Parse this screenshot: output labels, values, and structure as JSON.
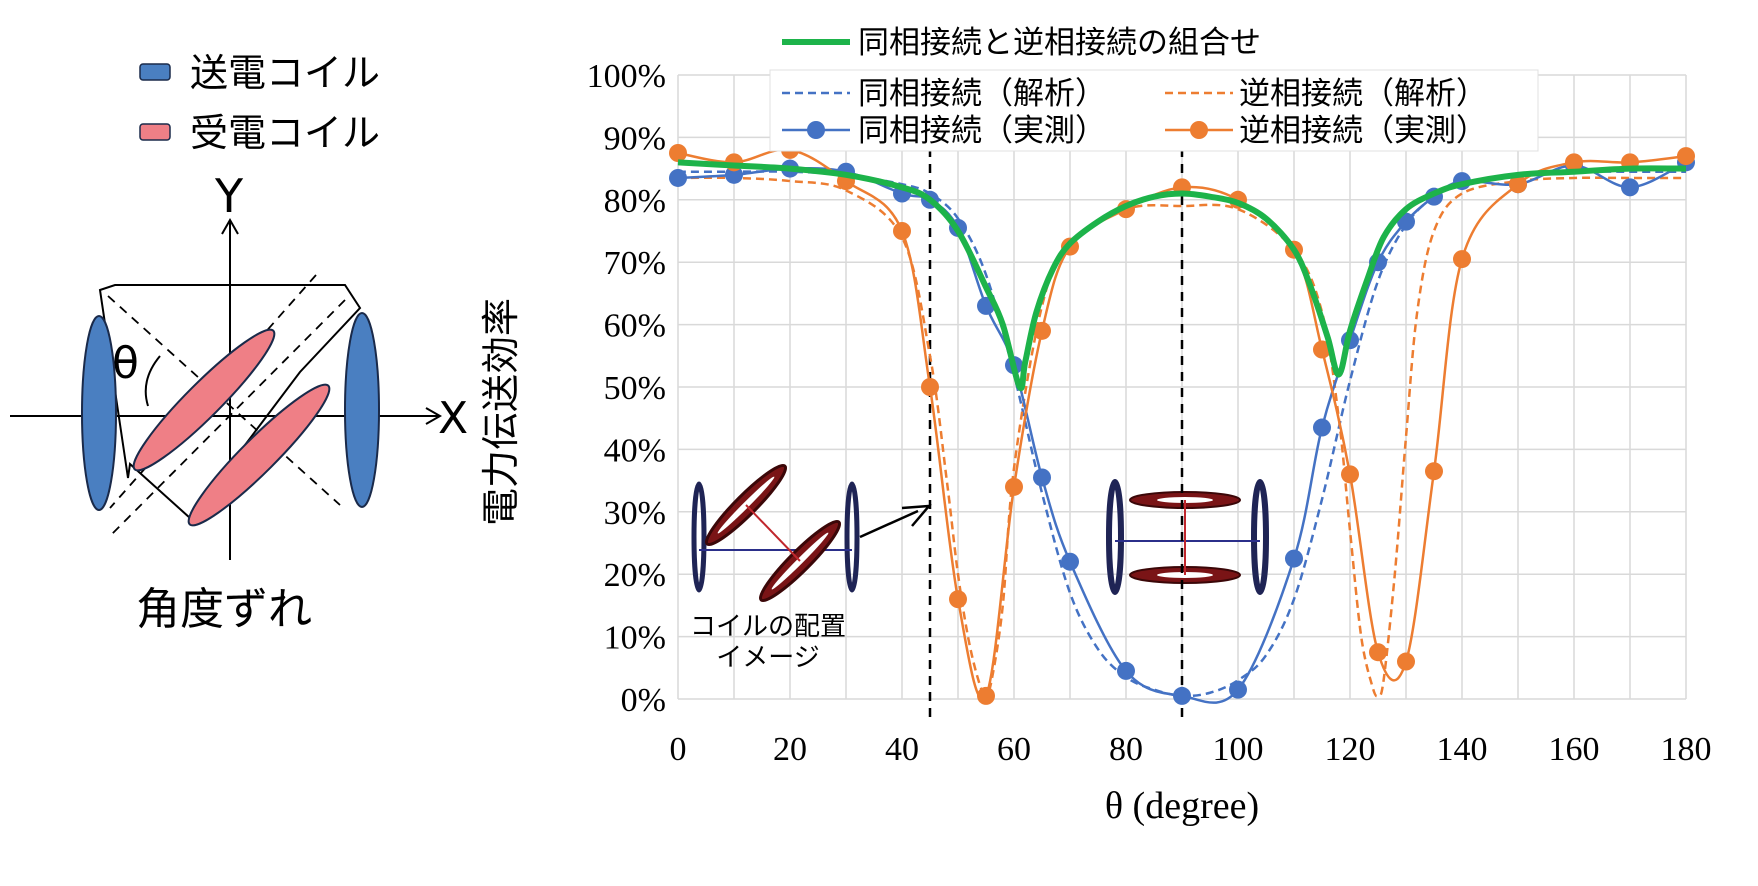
{
  "diagram": {
    "legend": [
      {
        "label": "送電コイル",
        "color": "#4a7fc1"
      },
      {
        "label": "受電コイル",
        "color": "#ef7f86"
      }
    ],
    "y_axis_label": "Y",
    "x_axis_label": "X",
    "angle_label": "θ",
    "caption": "角度ずれ"
  },
  "chart_data": {
    "type": "line",
    "xlabel": "θ (degree)",
    "ylabel": "電力伝送効率",
    "xlim": [
      0,
      180
    ],
    "ylim": [
      0,
      100
    ],
    "x_ticks": [
      "0",
      "20",
      "40",
      "60",
      "80",
      "100",
      "120",
      "140",
      "160",
      "180"
    ],
    "y_ticks": [
      "0%",
      "10%",
      "20%",
      "30%",
      "40%",
      "50%",
      "60%",
      "70%",
      "80%",
      "90%",
      "100%"
    ],
    "grid": true,
    "legend_position": "top",
    "annotations": {
      "inset_caption": "コイルの配置\nイメージ",
      "reference_lines_x": [
        45,
        90
      ]
    },
    "series": [
      {
        "name": "同相接続と逆相接続の組合せ",
        "style": "solid-thick",
        "color": "#1db34a",
        "x": [
          0,
          10,
          20,
          30,
          40,
          45,
          50,
          55,
          58,
          61,
          62,
          64,
          67,
          70,
          75,
          80,
          85,
          90,
          95,
          100,
          105,
          110,
          113,
          116,
          118,
          120,
          123,
          126,
          130,
          135,
          140,
          150,
          160,
          170,
          180
        ],
        "y": [
          86,
          85.5,
          85,
          84,
          82,
          80,
          75,
          66,
          60,
          50,
          54,
          62,
          69,
          73,
          76.5,
          79,
          80.5,
          81,
          80.5,
          79.5,
          77,
          72,
          66,
          58,
          52,
          59,
          67,
          74,
          78.5,
          81,
          82.5,
          84,
          84.5,
          85,
          85
        ]
      },
      {
        "name": "同相接続（解析）",
        "style": "dashed",
        "color": "#4472c4",
        "x": [
          0,
          10,
          20,
          30,
          40,
          45,
          50,
          55,
          60,
          65,
          70,
          75,
          80,
          85,
          90,
          95,
          100,
          105,
          110,
          115,
          120,
          125,
          130,
          135,
          140,
          150,
          160,
          170,
          180
        ],
        "y": [
          84.5,
          84.5,
          84.5,
          84,
          82.5,
          81,
          77,
          68,
          52,
          33,
          17,
          8,
          3.5,
          1.5,
          0.5,
          1,
          3,
          7,
          16,
          32,
          51,
          67,
          76,
          80.5,
          82.5,
          84,
          84.5,
          84.5,
          84.5
        ]
      },
      {
        "name": "逆相接続（解析）",
        "style": "dashed",
        "color": "#ed7d31",
        "x": [
          0,
          10,
          20,
          30,
          40,
          45,
          48,
          50,
          52,
          54,
          55,
          56,
          58,
          60,
          65,
          70,
          80,
          90,
          100,
          110,
          115,
          118,
          120,
          122,
          124,
          125,
          126,
          128,
          130,
          132,
          135,
          140,
          150,
          160,
          170,
          180
        ],
        "y": [
          83.5,
          83.5,
          83,
          81.5,
          74,
          55,
          35,
          20,
          9,
          2,
          1,
          3,
          15,
          37,
          63,
          73,
          78.5,
          79,
          78.5,
          72,
          62,
          45,
          27,
          10,
          2,
          0.5,
          3,
          20,
          42,
          62,
          75,
          81,
          83,
          83.5,
          83.5,
          83.5
        ]
      },
      {
        "name": "同相接続（実測）",
        "style": "solid-markers",
        "color": "#4472c4",
        "x": [
          0,
          10,
          20,
          30,
          40,
          45,
          50,
          55,
          60,
          65,
          70,
          80,
          90,
          100,
          110,
          115,
          120,
          125,
          130,
          135,
          140,
          150,
          160,
          170,
          180
        ],
        "y": [
          83.5,
          84,
          85,
          84.5,
          81,
          80,
          75.5,
          63,
          53.5,
          35.5,
          22,
          4.5,
          0.5,
          1.5,
          22.5,
          43.5,
          57.5,
          70,
          76.5,
          80.5,
          83,
          82.5,
          85.5,
          82,
          86
        ]
      },
      {
        "name": "逆相接続（実測）",
        "style": "solid-markers",
        "color": "#ed7d31",
        "x": [
          0,
          10,
          20,
          30,
          40,
          45,
          50,
          55,
          60,
          65,
          70,
          80,
          90,
          100,
          110,
          115,
          120,
          125,
          130,
          135,
          140,
          150,
          160,
          170,
          180
        ],
        "y": [
          87.5,
          86,
          88,
          83,
          75,
          50,
          16,
          0.5,
          34,
          59,
          72.5,
          78.5,
          82,
          80,
          72,
          56,
          36,
          7.5,
          6,
          36.5,
          70.5,
          82.5,
          86,
          86,
          87
        ]
      }
    ]
  }
}
